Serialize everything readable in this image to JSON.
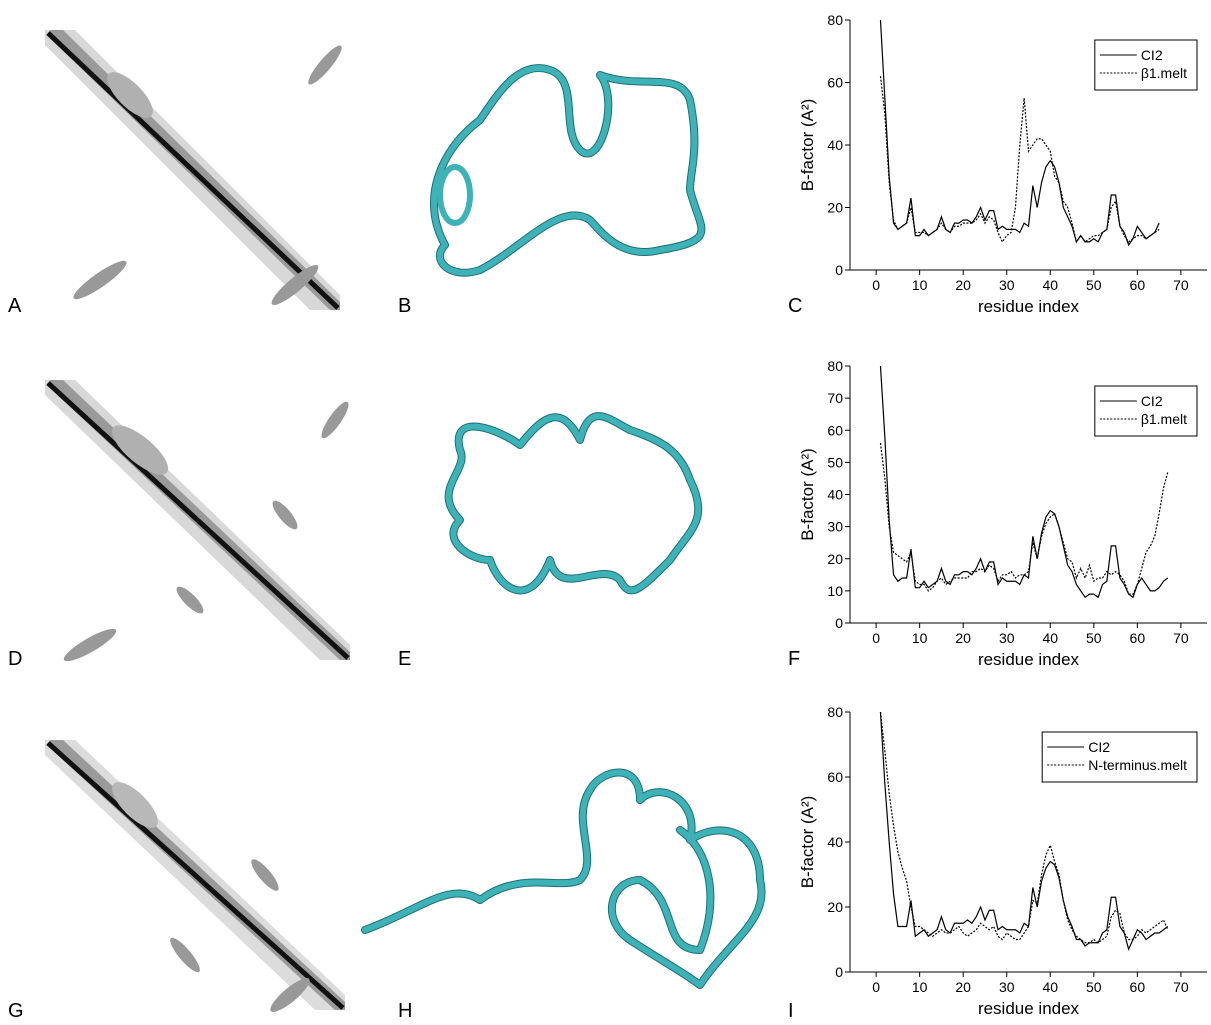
{
  "panel_labels": [
    "A",
    "B",
    "C",
    "D",
    "E",
    "F",
    "G",
    "H",
    "I"
  ],
  "chart_data": [
    {
      "type": "line",
      "xlabel": "residue index",
      "ylabel": "B-factor (A²)",
      "legend": "upper right",
      "xlim": [
        -6,
        76
      ],
      "ylim": [
        0,
        80
      ],
      "xticks": [
        0,
        10,
        20,
        30,
        40,
        50,
        60,
        70
      ],
      "yticks": [
        0,
        20,
        40,
        60,
        80
      ],
      "series": [
        {
          "name": "CI2",
          "color": "#000000",
          "style": "solid",
          "x": [
            1,
            2,
            3,
            4,
            5,
            6,
            7,
            8,
            9,
            10,
            11,
            12,
            13,
            14,
            15,
            16,
            17,
            18,
            19,
            20,
            21,
            22,
            23,
            24,
            25,
            26,
            27,
            28,
            29,
            30,
            31,
            32,
            33,
            34,
            35,
            36,
            37,
            38,
            39,
            40,
            41,
            42,
            43,
            44,
            45,
            46,
            47,
            48,
            49,
            50,
            51,
            52,
            53,
            54,
            55,
            56,
            57,
            58,
            59,
            60,
            61,
            62,
            63,
            64,
            65
          ],
          "values": [
            80,
            55,
            30,
            15,
            13,
            14,
            15,
            23,
            11,
            11,
            13,
            11,
            12,
            13,
            17,
            13,
            12,
            15,
            15,
            16,
            16,
            15,
            17,
            20,
            16,
            19,
            19,
            13,
            14,
            13,
            13,
            13,
            12,
            15,
            14,
            27,
            20,
            28,
            33,
            35,
            33,
            28,
            20,
            17,
            14,
            9,
            11,
            9,
            9,
            10,
            9,
            12,
            13,
            24,
            24,
            14,
            12,
            8,
            10,
            14,
            12,
            10,
            11,
            12,
            15
          ]
        },
        {
          "name": "β1.melt",
          "color": "#000000",
          "style": "dotted",
          "x": [
            1,
            2,
            3,
            4,
            5,
            6,
            7,
            8,
            9,
            10,
            11,
            12,
            13,
            14,
            15,
            16,
            17,
            18,
            19,
            20,
            21,
            22,
            23,
            24,
            25,
            26,
            27,
            28,
            29,
            30,
            31,
            32,
            33,
            34,
            35,
            36,
            37,
            38,
            39,
            40,
            41,
            42,
            43,
            44,
            45,
            46,
            47,
            48,
            49,
            50,
            51,
            52,
            53,
            54,
            55,
            56,
            57,
            58,
            59,
            60,
            61,
            62,
            63,
            64,
            65
          ],
          "values": [
            62,
            50,
            28,
            16,
            13,
            14,
            15,
            20,
            12,
            12,
            12,
            11,
            12,
            13,
            15,
            13,
            12,
            14,
            14,
            15,
            15,
            15,
            16,
            18,
            15,
            17,
            16,
            12,
            9,
            11,
            12,
            20,
            40,
            55,
            38,
            40,
            42,
            42,
            40,
            38,
            30,
            28,
            22,
            20,
            15,
            9,
            11,
            9,
            10,
            11,
            11,
            12,
            13,
            20,
            22,
            14,
            11,
            9,
            10,
            11,
            11,
            10,
            11,
            12,
            13
          ]
        }
      ]
    },
    {
      "type": "line",
      "xlabel": "residue index",
      "ylabel": "B-factor (A²)",
      "legend": "upper right",
      "xlim": [
        -6,
        76
      ],
      "ylim": [
        0,
        80
      ],
      "xticks": [
        0,
        10,
        20,
        30,
        40,
        50,
        60,
        70
      ],
      "yticks": [
        0,
        10,
        20,
        30,
        40,
        50,
        60,
        70,
        80
      ],
      "series": [
        {
          "name": "CI2",
          "color": "#000000",
          "style": "solid",
          "x": [
            1,
            2,
            3,
            4,
            5,
            6,
            7,
            8,
            9,
            10,
            11,
            12,
            13,
            14,
            15,
            16,
            17,
            18,
            19,
            20,
            21,
            22,
            23,
            24,
            25,
            26,
            27,
            28,
            29,
            30,
            31,
            32,
            33,
            34,
            35,
            36,
            37,
            38,
            39,
            40,
            41,
            42,
            43,
            44,
            45,
            46,
            47,
            48,
            49,
            50,
            51,
            52,
            53,
            54,
            55,
            56,
            57,
            58,
            59,
            60,
            61,
            62,
            63,
            64,
            65,
            66,
            67
          ],
          "values": [
            80,
            58,
            32,
            15,
            13,
            14,
            14,
            23,
            11,
            11,
            13,
            11,
            12,
            13,
            17,
            13,
            12,
            15,
            15,
            16,
            16,
            15,
            17,
            20,
            16,
            19,
            19,
            12,
            14,
            13,
            13,
            13,
            12,
            15,
            14,
            27,
            20,
            28,
            33,
            35,
            34,
            30,
            24,
            18,
            16,
            12,
            10,
            8,
            9,
            9,
            8,
            12,
            13,
            24,
            24,
            14,
            12,
            9,
            8,
            12,
            14,
            12,
            10,
            10,
            11,
            13,
            14
          ]
        },
        {
          "name": "β1.melt",
          "color": "#000000",
          "style": "dotted",
          "x": [
            1,
            2,
            3,
            4,
            5,
            6,
            7,
            8,
            9,
            10,
            11,
            12,
            13,
            14,
            15,
            16,
            17,
            18,
            19,
            20,
            21,
            22,
            23,
            24,
            25,
            26,
            27,
            28,
            29,
            30,
            31,
            32,
            33,
            34,
            35,
            36,
            37,
            38,
            39,
            40,
            41,
            42,
            43,
            44,
            45,
            46,
            47,
            48,
            49,
            50,
            51,
            52,
            53,
            54,
            55,
            56,
            57,
            58,
            59,
            60,
            61,
            62,
            63,
            64,
            65,
            66,
            67
          ],
          "values": [
            56,
            45,
            30,
            22,
            21,
            20,
            19,
            22,
            13,
            12,
            12,
            10,
            11,
            13,
            14,
            12,
            13,
            14,
            14,
            14,
            14,
            16,
            16,
            17,
            16,
            18,
            17,
            13,
            15,
            15,
            16,
            14,
            15,
            15,
            16,
            25,
            20,
            27,
            31,
            33,
            34,
            30,
            25,
            20,
            19,
            14,
            17,
            14,
            18,
            13,
            14,
            14,
            16,
            15,
            16,
            15,
            13,
            9,
            9,
            12,
            17,
            22,
            24,
            27,
            34,
            42,
            47
          ]
        }
      ]
    },
    {
      "type": "line",
      "xlabel": "residue index",
      "ylabel": "B-factor (A²)",
      "legend": "upper right",
      "xlim": [
        -6,
        76
      ],
      "ylim": [
        0,
        80
      ],
      "xticks": [
        0,
        10,
        20,
        30,
        40,
        50,
        60,
        70
      ],
      "yticks": [
        0,
        20,
        40,
        60,
        80
      ],
      "series": [
        {
          "name": "CI2",
          "color": "#000000",
          "style": "solid",
          "x": [
            1,
            2,
            3,
            4,
            5,
            6,
            7,
            8,
            9,
            10,
            11,
            12,
            13,
            14,
            15,
            16,
            17,
            18,
            19,
            20,
            21,
            22,
            23,
            24,
            25,
            26,
            27,
            28,
            29,
            30,
            31,
            32,
            33,
            34,
            35,
            36,
            37,
            38,
            39,
            40,
            41,
            42,
            43,
            44,
            45,
            46,
            47,
            48,
            49,
            50,
            51,
            52,
            53,
            54,
            55,
            56,
            57,
            58,
            59,
            60,
            61,
            62,
            63,
            64,
            65,
            66,
            67
          ],
          "values": [
            80,
            58,
            40,
            24,
            14,
            14,
            14,
            22,
            11,
            12,
            13,
            11,
            12,
            13,
            17,
            13,
            12,
            15,
            15,
            15,
            16,
            15,
            17,
            20,
            16,
            19,
            19,
            13,
            14,
            13,
            13,
            13,
            12,
            15,
            14,
            26,
            20,
            28,
            32,
            34,
            33,
            29,
            22,
            17,
            14,
            10,
            10,
            8,
            9,
            9,
            9,
            12,
            13,
            23,
            23,
            14,
            12,
            7,
            10,
            13,
            12,
            10,
            11,
            12,
            12,
            13,
            14
          ]
        },
        {
          "name": "N-terminus.melt",
          "color": "#000000",
          "style": "dotted",
          "x": [
            1,
            2,
            3,
            4,
            5,
            6,
            7,
            8,
            9,
            10,
            11,
            12,
            13,
            14,
            15,
            16,
            17,
            18,
            19,
            20,
            21,
            22,
            23,
            24,
            25,
            26,
            27,
            28,
            29,
            30,
            31,
            32,
            33,
            34,
            35,
            36,
            37,
            38,
            39,
            40,
            41,
            42,
            43,
            44,
            45,
            46,
            47,
            48,
            49,
            50,
            51,
            52,
            53,
            54,
            55,
            56,
            57,
            58,
            59,
            60,
            61,
            62,
            63,
            64,
            65,
            66,
            67
          ],
          "values": [
            80,
            68,
            55,
            45,
            37,
            32,
            28,
            20,
            14,
            14,
            13,
            12,
            11,
            12,
            13,
            12,
            12,
            13,
            14,
            12,
            11,
            12,
            13,
            15,
            14,
            13,
            14,
            11,
            10,
            12,
            11,
            10,
            10,
            12,
            14,
            22,
            21,
            30,
            36,
            39,
            34,
            30,
            22,
            16,
            13,
            11,
            10,
            9,
            9,
            10,
            9,
            10,
            11,
            17,
            19,
            18,
            12,
            10,
            10,
            11,
            13,
            12,
            13,
            14,
            15,
            16,
            13
          ]
        }
      ]
    }
  ]
}
